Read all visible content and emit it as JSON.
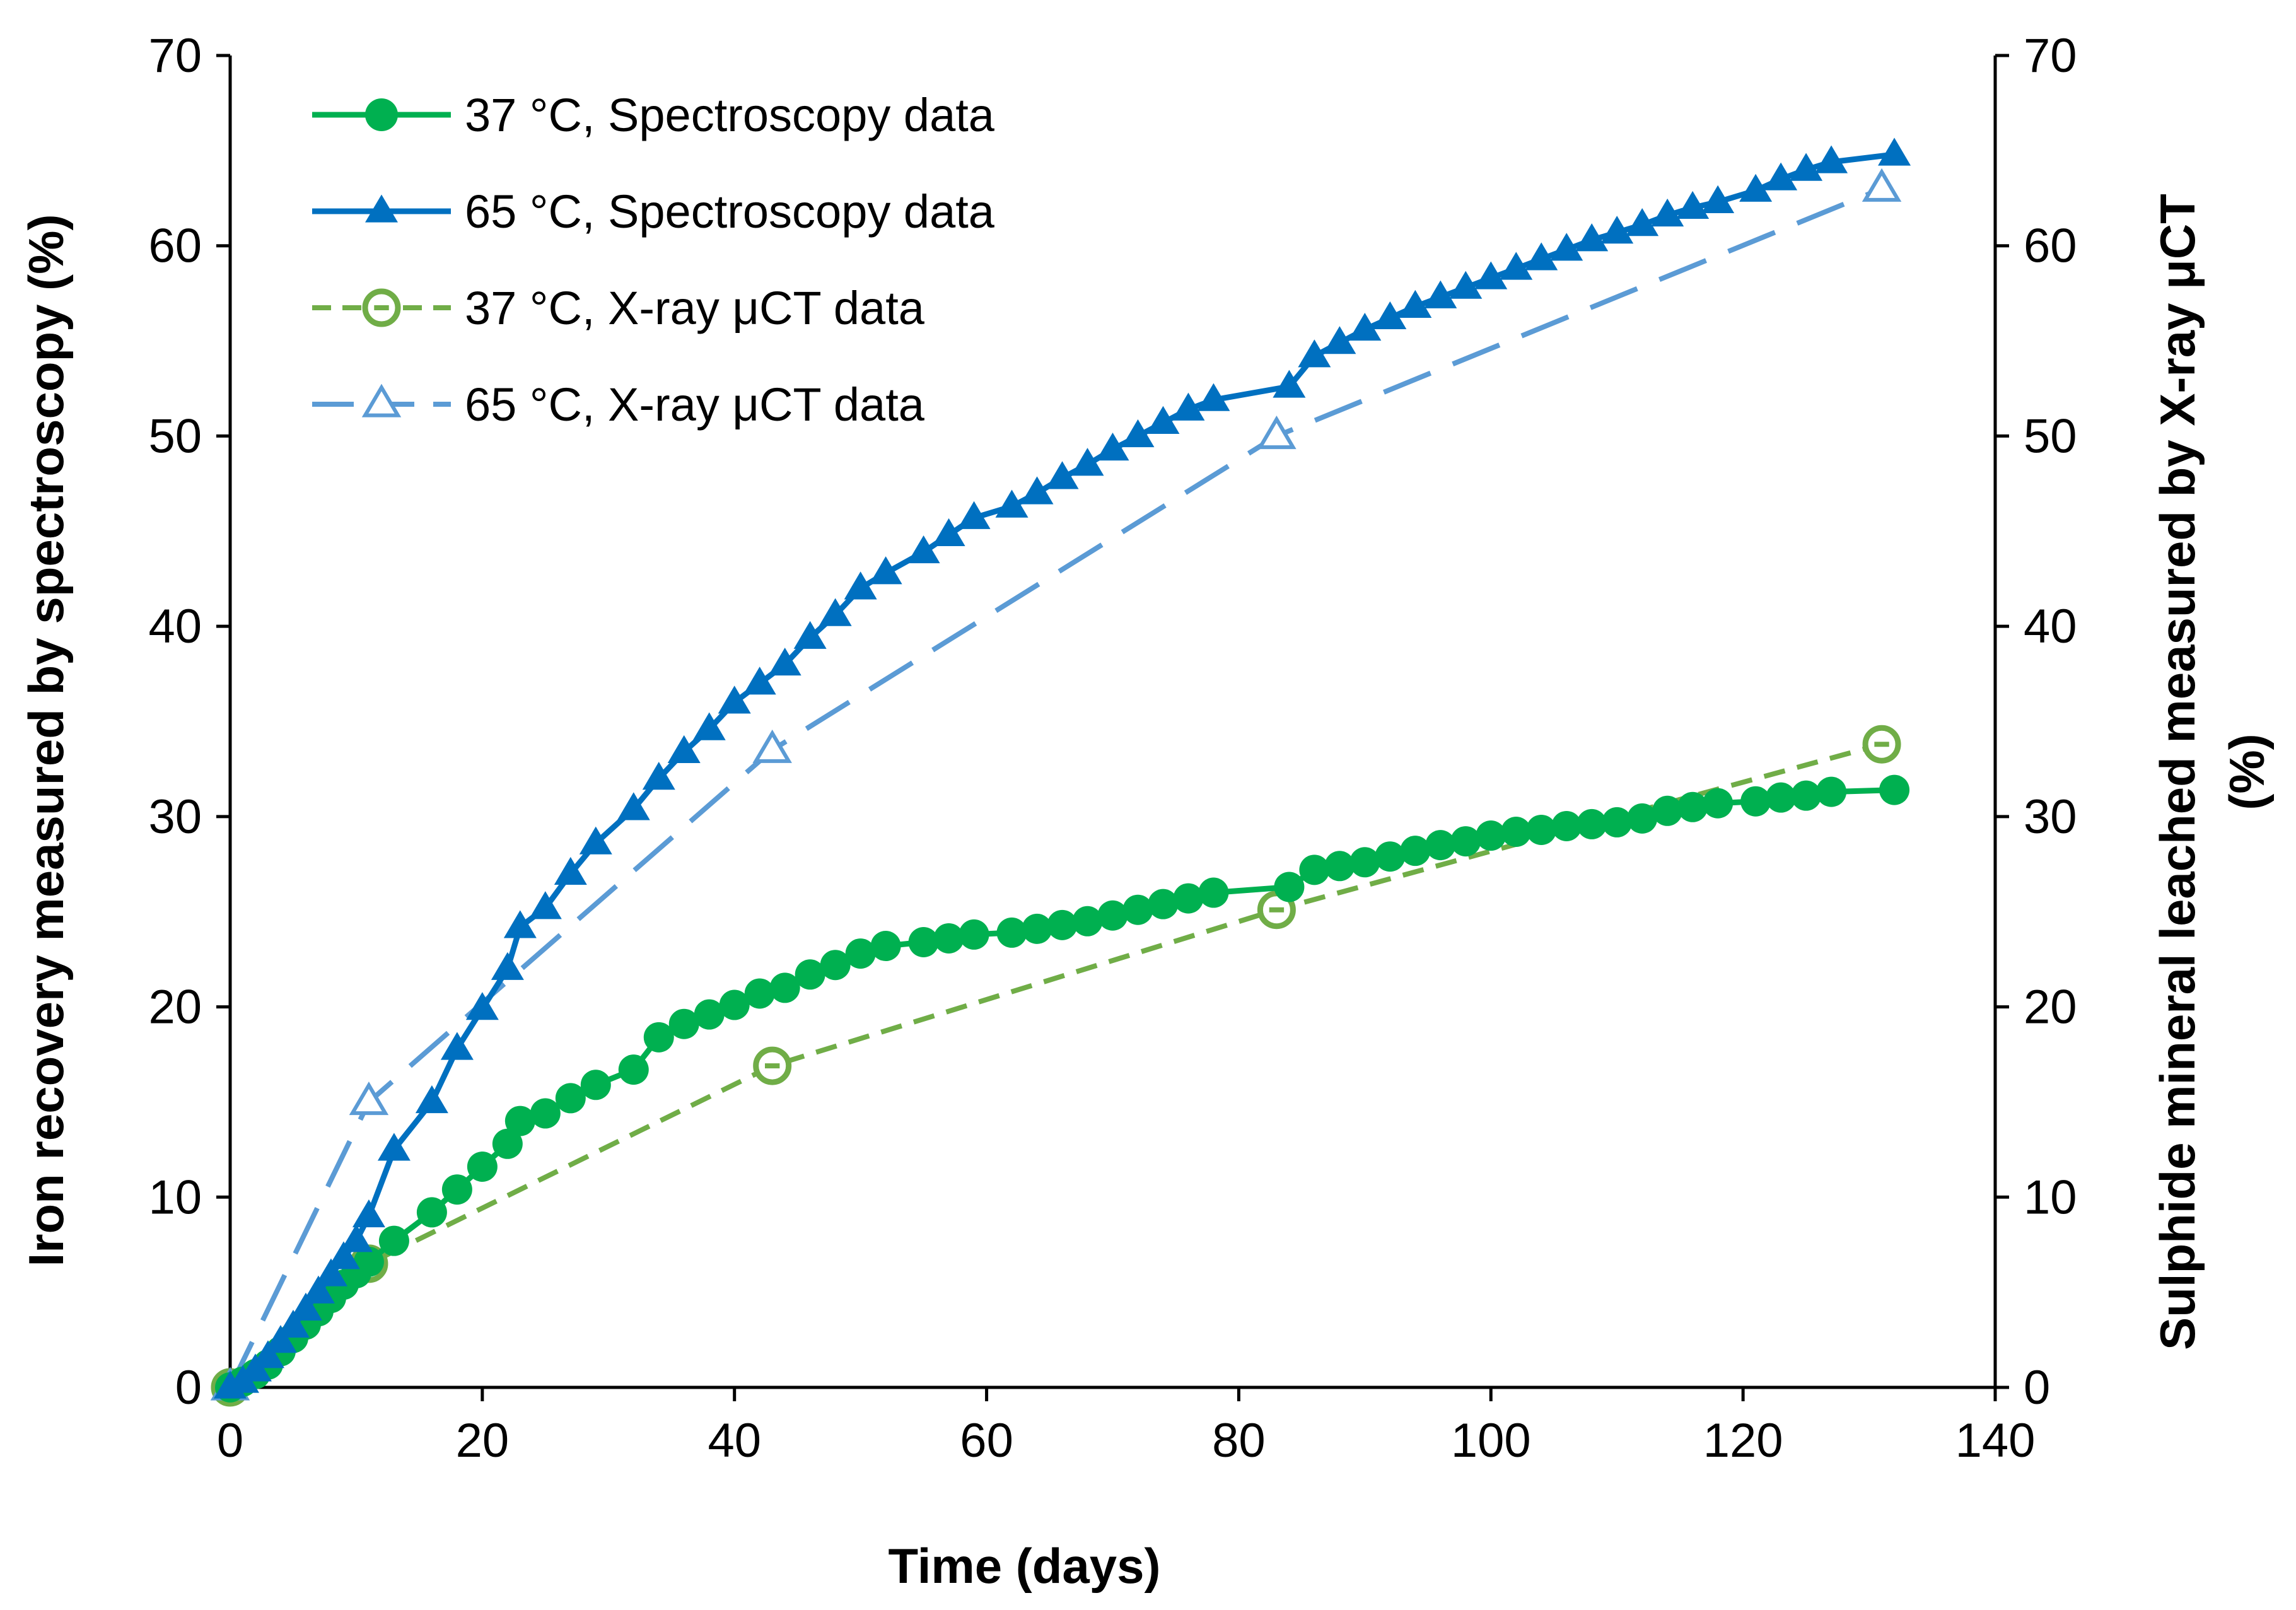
{
  "chart_data": {
    "type": "line",
    "title": "",
    "xlabel": "Time (days)",
    "ylabel": "Iron recovery measured by spectroscopy (%)",
    "ylabel_right_line1": "Sulphide mineral leached measured by X-ray μCT",
    "ylabel_right_line2": "(%)",
    "xlim": [
      0,
      140
    ],
    "ylim": [
      0,
      70
    ],
    "y2lim": [
      0,
      70
    ],
    "xticks": [
      0,
      20,
      40,
      60,
      80,
      100,
      120,
      140
    ],
    "yticks": [
      0,
      10,
      20,
      30,
      40,
      50,
      60,
      70
    ],
    "grid": false,
    "legend_position": "top-left",
    "series": [
      {
        "name": "37 °C, Spectroscopy data",
        "axis": "left",
        "color": "#00b050",
        "marker": "filled-circle",
        "line": "solid",
        "x": [
          0,
          1,
          2,
          3,
          4,
          5,
          6,
          7,
          8,
          9,
          10,
          11,
          13,
          16,
          18,
          20,
          22,
          23,
          25,
          27,
          29,
          32,
          34,
          36,
          38,
          40,
          42,
          44,
          46,
          48,
          50,
          52,
          55,
          57,
          59,
          62,
          64,
          66,
          68,
          70,
          72,
          74,
          76,
          78,
          84,
          86,
          88,
          90,
          92,
          94,
          96,
          98,
          100,
          102,
          104,
          106,
          108,
          110,
          112,
          114,
          116,
          118,
          121,
          123,
          125,
          127,
          132
        ],
        "y": [
          0,
          0.3,
          0.7,
          1.2,
          1.9,
          2.6,
          3.3,
          4,
          4.7,
          5.4,
          6,
          6.6,
          7.7,
          9.2,
          10.4,
          11.6,
          12.8,
          14,
          14.4,
          15.2,
          15.9,
          16.7,
          18.4,
          19.1,
          19.6,
          20.1,
          20.7,
          21,
          21.7,
          22.2,
          22.8,
          23.2,
          23.4,
          23.6,
          23.8,
          23.9,
          24.1,
          24.3,
          24.5,
          24.8,
          25.1,
          25.4,
          25.7,
          26,
          26.3,
          27.2,
          27.4,
          27.6,
          27.9,
          28.2,
          28.5,
          28.7,
          29,
          29.2,
          29.3,
          29.5,
          29.6,
          29.7,
          29.9,
          30.3,
          30.5,
          30.7,
          30.8,
          31,
          31.1,
          31.3,
          31.4
        ]
      },
      {
        "name": "65 °C, Spectroscopy data",
        "axis": "left",
        "color": "#0070c0",
        "marker": "filled-triangle",
        "line": "solid",
        "x": [
          0,
          1,
          2,
          3,
          4,
          5,
          6,
          7,
          8,
          9,
          10,
          11,
          13,
          16,
          18,
          20,
          22,
          23,
          25,
          27,
          29,
          32,
          34,
          36,
          38,
          40,
          42,
          44,
          46,
          48,
          50,
          52,
          55,
          57,
          59,
          62,
          64,
          66,
          68,
          70,
          72,
          74,
          76,
          78,
          84,
          86,
          88,
          90,
          92,
          94,
          96,
          98,
          100,
          102,
          104,
          106,
          108,
          110,
          112,
          114,
          116,
          118,
          121,
          123,
          125,
          127,
          132
        ],
        "y": [
          0,
          0.3,
          0.9,
          1.6,
          2.4,
          3.2,
          4.1,
          5,
          5.9,
          6.8,
          7.7,
          9,
          12.5,
          15,
          17.8,
          19.9,
          22,
          24.2,
          25.2,
          27,
          28.6,
          30.4,
          32,
          33.4,
          34.6,
          36,
          37,
          38,
          39.4,
          40.6,
          42,
          42.8,
          43.9,
          44.8,
          45.7,
          46.3,
          47,
          47.8,
          48.5,
          49.3,
          50,
          50.7,
          51.4,
          51.9,
          52.6,
          54.2,
          54.9,
          55.6,
          56.2,
          56.8,
          57.3,
          57.8,
          58.3,
          58.8,
          59.3,
          59.8,
          60.3,
          60.7,
          61.1,
          61.6,
          62,
          62.3,
          62.9,
          63.5,
          64,
          64.4,
          64.8
        ]
      },
      {
        "name": "37 °C, X-ray μCT data",
        "axis": "right",
        "color": "#70ad47",
        "marker": "open-circle",
        "line": "dashed",
        "x": [
          0,
          11,
          43,
          83,
          131
        ],
        "y": [
          0,
          6.5,
          16.9,
          25.1,
          33.8
        ]
      },
      {
        "name": "65 °C, X-ray μCT data",
        "axis": "right",
        "color": "#5b9bd5",
        "marker": "open-triangle",
        "line": "long-dashed",
        "x": [
          0,
          11,
          43,
          83,
          131
        ],
        "y": [
          0,
          15,
          33.5,
          50,
          63
        ]
      }
    ]
  }
}
